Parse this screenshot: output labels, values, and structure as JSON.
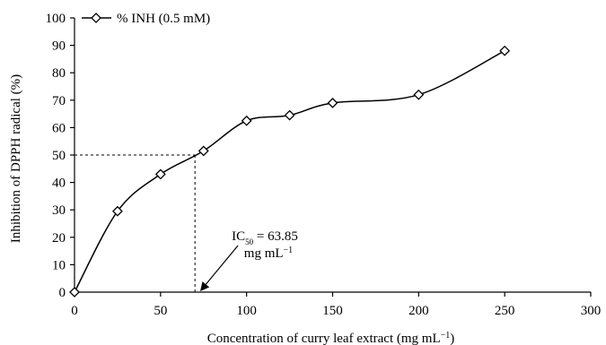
{
  "chart_data": {
    "type": "line",
    "xlabel": "Concentration of curry leaf extract (mg mL",
    "xlabel_sup": "−1",
    "xlabel_end": ")",
    "ylabel": "Inhibition of DPPH radical (%)",
    "xlim": [
      0,
      300
    ],
    "ylim": [
      0,
      100
    ],
    "x_ticks": [
      0,
      50,
      100,
      150,
      200,
      250,
      300
    ],
    "y_ticks": [
      0,
      10,
      20,
      30,
      40,
      50,
      60,
      70,
      80,
      90,
      100
    ],
    "grid": false,
    "legend_position": "top-left",
    "series": [
      {
        "name": "% INH (0.5 mM)",
        "marker": "diamond",
        "color": "#000000",
        "x": [
          0,
          25,
          50,
          75,
          100,
          125,
          150,
          200,
          250
        ],
        "y": [
          0,
          29.5,
          43,
          51.5,
          62.5,
          64.5,
          69,
          72,
          88
        ]
      }
    ],
    "reference_lines": {
      "x": 70,
      "y": 50
    },
    "annotation": {
      "line1_prefix": "IC",
      "line1_sub": "50",
      "line1_value": " = 63.85",
      "line2": "mg mL",
      "line2_sup": "−1",
      "arrow_target": {
        "x": 72,
        "y": 0
      },
      "arrow_from": {
        "x": 95,
        "y": 17
      }
    }
  }
}
